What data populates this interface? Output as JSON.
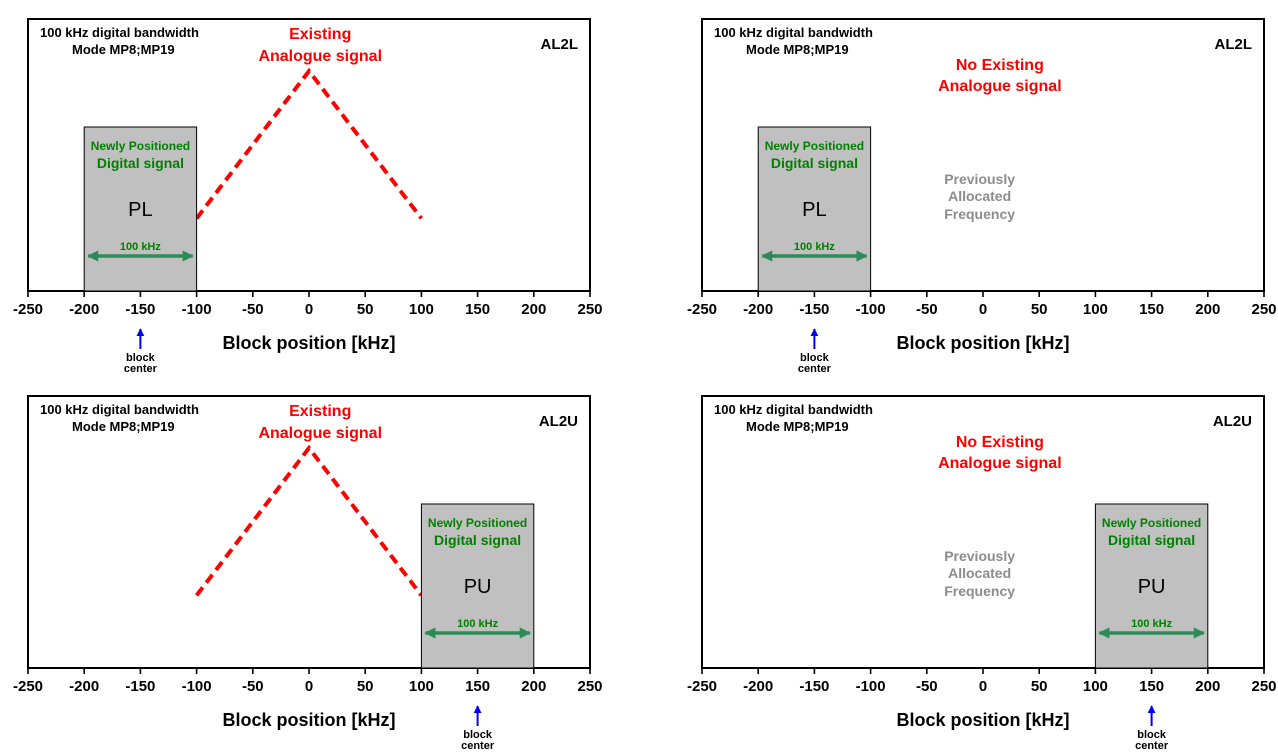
{
  "colors": {
    "analogue": "#ff0000",
    "digital_text": "#008000",
    "bandwidth_arrow": "#2e8b57",
    "block_fill": "#c0c0c0",
    "center_arrow": "#0000ff",
    "previous_text": "#8c8c8c"
  },
  "common": {
    "header_line1": "100 kHz digital bandwidth",
    "header_line2": "Mode MP8;MP19",
    "xlabel": "Block position  [kHz]",
    "xticks": [
      -250,
      -200,
      -150,
      -100,
      -50,
      0,
      50,
      100,
      150,
      200,
      250
    ],
    "xlim": [
      -250,
      250
    ],
    "digital_line1": "Newly Positioned",
    "digital_line2": "Digital signal",
    "bandwidth_label": "100 kHz",
    "center_line1": "block",
    "center_line2": "center",
    "previous_line1": "Previously",
    "previous_line2": "Allocated",
    "previous_line3": "Frequency"
  },
  "panels": [
    {
      "id": "tl",
      "mode_label": "AL2L",
      "analogue_present": true,
      "analogue_line1": "Existing",
      "analogue_line2": "Analogue signal",
      "block_code": "PL",
      "block_range": [
        -200,
        -100
      ],
      "center_kHz": -150,
      "analogue_points": [
        [
          -100,
          0.33
        ],
        [
          0,
          1.0
        ],
        [
          100,
          0.33
        ]
      ]
    },
    {
      "id": "tr",
      "mode_label": "AL2L",
      "analogue_present": false,
      "analogue_line1": "No Existing",
      "analogue_line2": "Analogue signal",
      "block_code": "PL",
      "block_range": [
        -200,
        -100
      ],
      "center_kHz": -150,
      "previous_at_kHz": 0
    },
    {
      "id": "bl",
      "mode_label": "AL2U",
      "analogue_present": true,
      "analogue_line1": "Existing",
      "analogue_line2": "Analogue signal",
      "block_code": "PU",
      "block_range": [
        100,
        200
      ],
      "center_kHz": 150,
      "analogue_points": [
        [
          -100,
          0.33
        ],
        [
          0,
          1.0
        ],
        [
          100,
          0.33
        ]
      ]
    },
    {
      "id": "br",
      "mode_label": "AL2U",
      "analogue_present": false,
      "analogue_line1": "No Existing",
      "analogue_line2": "Analogue signal",
      "block_code": "PU",
      "block_range": [
        100,
        200
      ],
      "center_kHz": 150,
      "previous_at_kHz": 0
    }
  ]
}
